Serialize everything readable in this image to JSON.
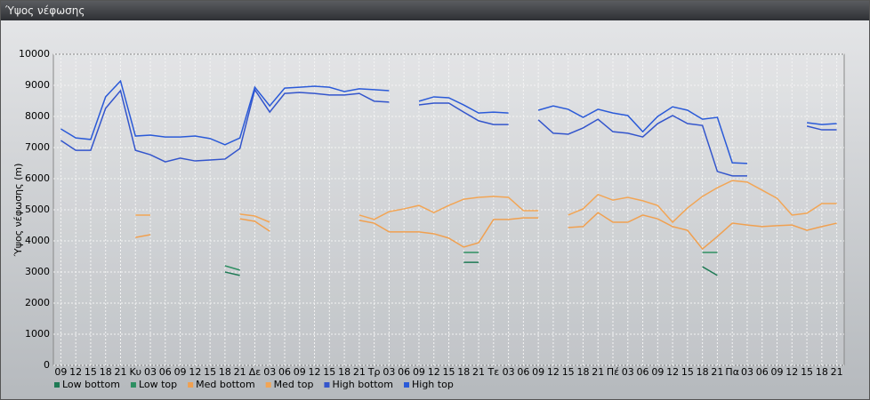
{
  "chart_data": {
    "type": "line",
    "title": "Ύψος νέφωσης",
    "y_label": "Ύψος νέφωσης (m)",
    "categories": [
      "09",
      "12",
      "15",
      "18",
      "21",
      "Κυ",
      "03",
      "06",
      "09",
      "12",
      "15",
      "18",
      "21",
      "Δε",
      "03",
      "06",
      "09",
      "12",
      "15",
      "18",
      "21",
      "Τρ",
      "03",
      "06",
      "09",
      "12",
      "15",
      "18",
      "21",
      "Τε",
      "03",
      "06",
      "09",
      "12",
      "15",
      "18",
      "21",
      "Πέ",
      "03",
      "06",
      "09",
      "12",
      "15",
      "18",
      "21",
      "Πα",
      "03",
      "06",
      "09",
      "12",
      "15",
      "18",
      "21"
    ],
    "ylim": [
      0,
      10000
    ],
    "yticks": [
      0,
      1000,
      2000,
      3000,
      4000,
      5000,
      6000,
      7000,
      8000,
      9000,
      10000
    ],
    "grid": true,
    "legend": "bottom",
    "series": [
      {
        "name": "Low bottom",
        "color": "#1f7a55",
        "values": [
          null,
          null,
          null,
          null,
          null,
          null,
          null,
          null,
          null,
          null,
          null,
          3000,
          2890,
          null,
          null,
          null,
          null,
          null,
          null,
          null,
          null,
          null,
          null,
          null,
          null,
          null,
          null,
          3310,
          3310,
          null,
          null,
          null,
          null,
          null,
          null,
          null,
          null,
          null,
          null,
          null,
          null,
          null,
          null,
          3170,
          2890,
          null,
          null,
          null,
          null,
          null,
          null,
          null,
          null
        ]
      },
      {
        "name": "Low top",
        "color": "#2e8f62",
        "values": [
          null,
          null,
          null,
          null,
          null,
          null,
          null,
          null,
          null,
          null,
          null,
          3200,
          3060,
          null,
          null,
          null,
          null,
          null,
          null,
          null,
          null,
          null,
          null,
          null,
          null,
          null,
          null,
          3630,
          3630,
          null,
          null,
          null,
          null,
          null,
          null,
          null,
          null,
          null,
          null,
          null,
          null,
          null,
          null,
          3630,
          3630,
          null,
          null,
          null,
          null,
          null,
          null,
          null,
          null
        ]
      },
      {
        "name": "Med bottom",
        "color": "#f0a050",
        "values": [
          null,
          null,
          null,
          null,
          null,
          4110,
          4200,
          null,
          null,
          null,
          null,
          null,
          4710,
          4630,
          4310,
          null,
          null,
          null,
          null,
          null,
          4660,
          4570,
          4290,
          4290,
          4290,
          4230,
          4090,
          3800,
          3940,
          4690,
          4690,
          4740,
          4740,
          null,
          4430,
          4460,
          4910,
          4600,
          4600,
          4830,
          4710,
          4460,
          4340,
          3740,
          4140,
          4570,
          4510,
          4460,
          4490,
          4510,
          4340,
          4460,
          4570
        ]
      },
      {
        "name": "Med top",
        "color": "#f2a555",
        "values": [
          null,
          null,
          null,
          null,
          null,
          4830,
          4830,
          null,
          null,
          null,
          null,
          null,
          4860,
          4800,
          4600,
          null,
          null,
          null,
          null,
          null,
          4830,
          4690,
          4940,
          5030,
          5140,
          4910,
          5140,
          5340,
          5400,
          5430,
          5400,
          4970,
          4970,
          null,
          4830,
          5030,
          5490,
          5310,
          5400,
          5290,
          5140,
          4600,
          5060,
          5430,
          5710,
          5940,
          5890,
          5630,
          5370,
          4830,
          4890,
          5200,
          5200
        ]
      },
      {
        "name": "High bottom",
        "color": "#3355cc",
        "values": [
          7230,
          6910,
          6910,
          8260,
          8830,
          6910,
          6770,
          6540,
          6660,
          6570,
          6600,
          6630,
          6970,
          8860,
          8140,
          8740,
          8770,
          8740,
          8690,
          8690,
          8740,
          8490,
          8460,
          null,
          8370,
          8430,
          8430,
          8140,
          7860,
          7740,
          7740,
          null,
          7890,
          7460,
          7430,
          7630,
          7910,
          7510,
          7460,
          7340,
          7770,
          8030,
          7770,
          7710,
          6230,
          6090,
          6090,
          null,
          null,
          null,
          7690,
          7570,
          7570
        ]
      },
      {
        "name": "High top",
        "color": "#2a5ad8",
        "values": [
          7600,
          7310,
          7260,
          8630,
          9140,
          7370,
          7400,
          7340,
          7340,
          7370,
          7290,
          7090,
          7310,
          8940,
          8340,
          8910,
          8940,
          8970,
          8940,
          8800,
          8890,
          8860,
          8830,
          null,
          8490,
          8630,
          8600,
          8370,
          8110,
          8140,
          8110,
          null,
          8200,
          8340,
          8230,
          7970,
          8230,
          8110,
          8030,
          7510,
          8000,
          8310,
          8200,
          7910,
          7970,
          6510,
          6490,
          null,
          null,
          null,
          7800,
          7740,
          7770
        ]
      }
    ]
  }
}
